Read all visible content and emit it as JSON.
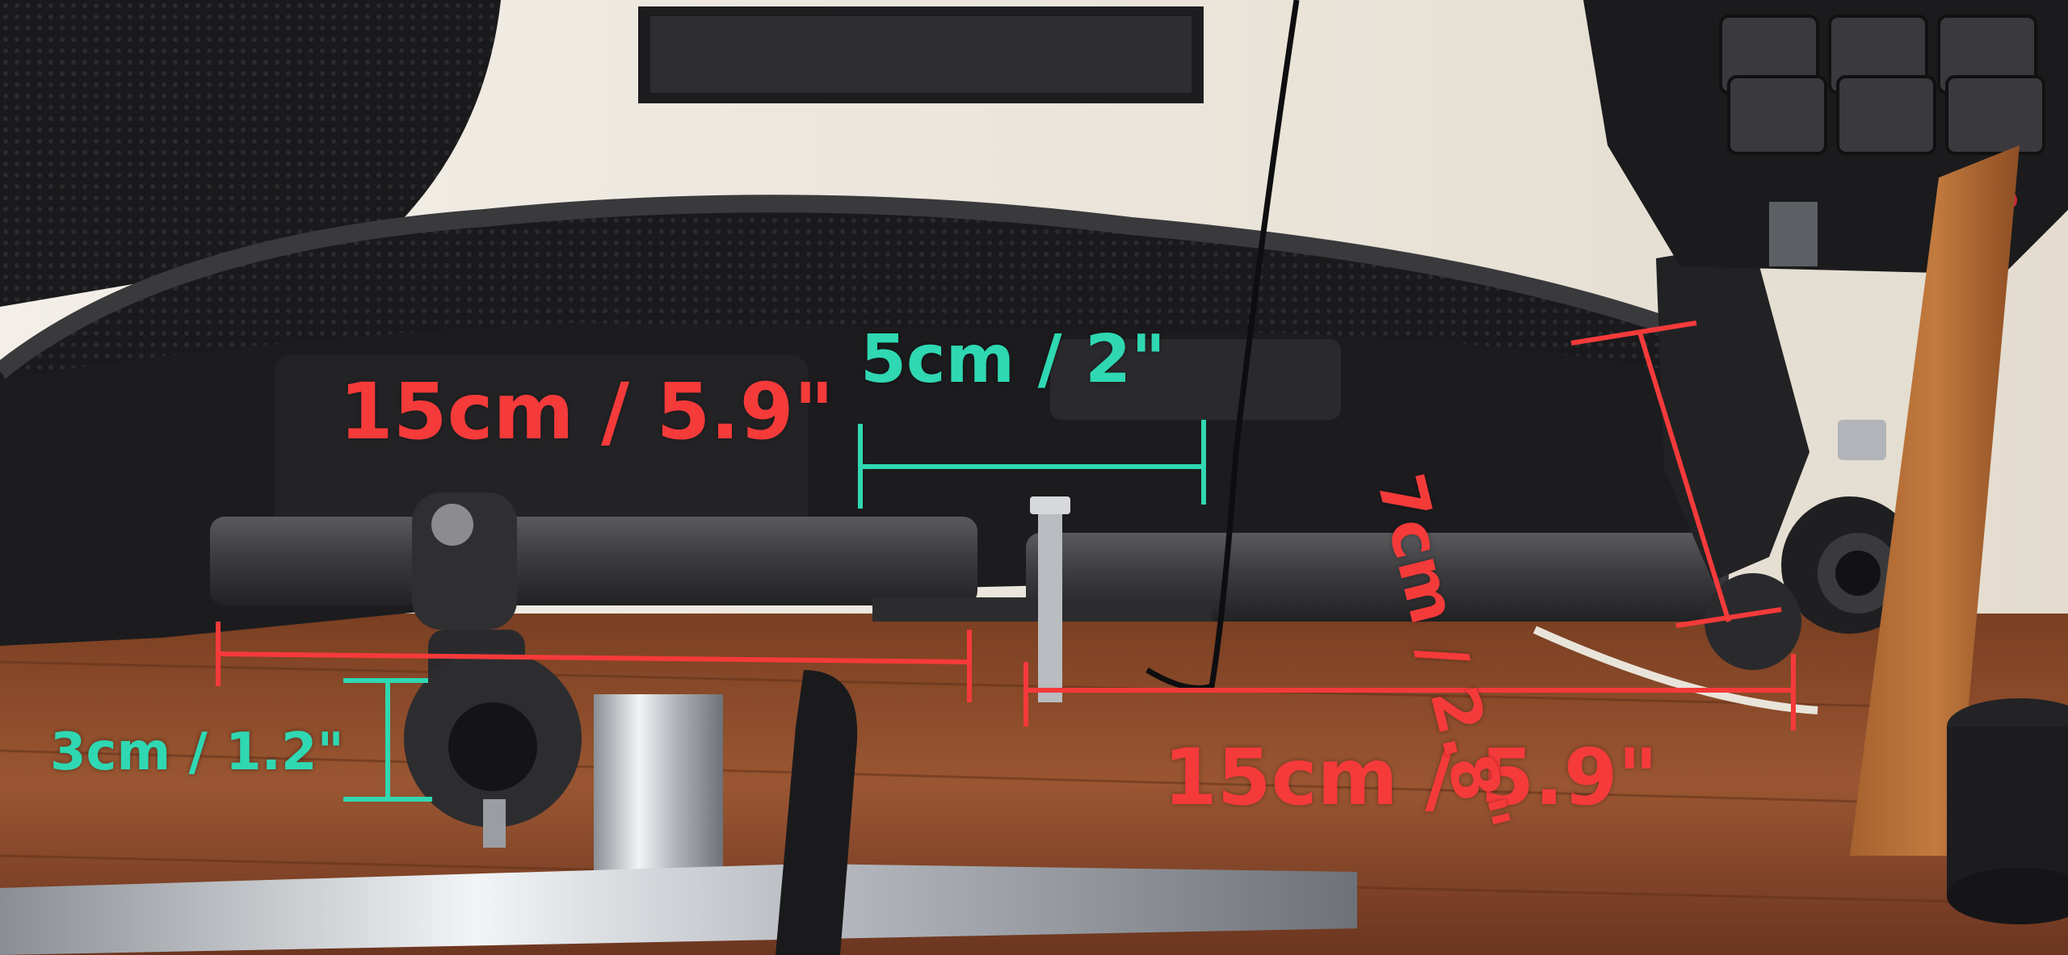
{
  "measurements": {
    "left_arm_length": "15cm / 5.9\"",
    "right_arm_length": "15cm / 5.9\"",
    "slot_width": "5cm / 2\"",
    "bracket_height": "3cm / 1.2\"",
    "mount_depth": "7cm / 2.8\""
  },
  "colors": {
    "red_annotation": "#f53a3a",
    "teal_annotation": "#2fd8b2",
    "floor_wood": "#8a4a2a",
    "wall": "#ece6dc",
    "chair_black": "#1c1c1e",
    "metal_bar": "#3a3a3c",
    "chrome": "#c9ccd0"
  }
}
